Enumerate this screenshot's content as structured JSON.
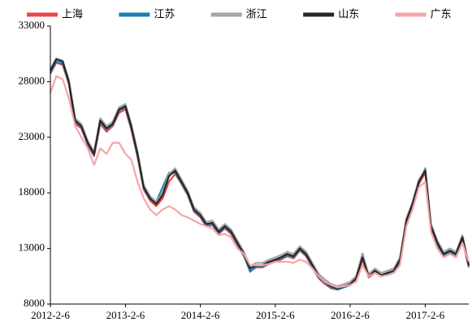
{
  "chart_data": {
    "type": "line",
    "x": [
      "2012-2-6",
      "2012-3-6",
      "2012-4-6",
      "2012-5-6",
      "2012-6-6",
      "2012-7-6",
      "2012-8-6",
      "2012-9-6",
      "2012-10-6",
      "2012-11-6",
      "2012-12-6",
      "2013-1-6",
      "2013-2-6",
      "2013-3-6",
      "2013-4-6",
      "2013-5-6",
      "2013-6-6",
      "2013-7-6",
      "2013-8-6",
      "2013-9-6",
      "2013-10-6",
      "2013-11-6",
      "2013-12-6",
      "2014-1-6",
      "2014-2-6",
      "2014-3-6",
      "2014-4-6",
      "2014-5-6",
      "2014-6-6",
      "2014-7-6",
      "2014-8-6",
      "2014-9-6",
      "2014-10-6",
      "2014-11-6",
      "2014-12-6",
      "2015-1-6",
      "2015-2-6",
      "2015-3-6",
      "2015-4-6",
      "2015-5-6",
      "2015-6-6",
      "2015-7-6",
      "2015-8-6",
      "2015-9-6",
      "2015-10-6",
      "2015-11-6",
      "2015-12-6",
      "2016-1-6",
      "2016-2-6",
      "2016-3-6",
      "2016-4-6",
      "2016-5-6",
      "2016-6-6",
      "2016-7-6",
      "2016-8-6",
      "2016-9-6",
      "2016-10-6",
      "2016-11-6",
      "2016-12-6",
      "2017-1-6",
      "2017-2-6",
      "2017-3-6",
      "2017-4-6",
      "2017-5-6",
      "2017-6-6",
      "2017-7-6",
      "2017-8-6",
      "2017-9-6"
    ],
    "series": [
      {
        "name": "上海",
        "color": "#e8474a",
        "values": [
          28700,
          29700,
          29500,
          27800,
          24200,
          23800,
          22300,
          21300,
          24200,
          23500,
          24000,
          25200,
          25500,
          23700,
          21200,
          18300,
          17300,
          16800,
          17500,
          19000,
          19700,
          18800,
          17800,
          16300,
          15800,
          15000,
          15100,
          14300,
          14800,
          14300,
          13300,
          12300,
          11000,
          11300,
          11300,
          11600,
          11800,
          12000,
          12300,
          12100,
          12800,
          12300,
          11300,
          10300,
          9800,
          9400,
          9300,
          9500,
          9700,
          10200,
          12000,
          10400,
          10800,
          10500,
          10700,
          10900,
          11800,
          15300,
          16800,
          18800,
          19800,
          14800,
          13300,
          12300,
          12600,
          12300,
          13800,
          11300
        ]
      },
      {
        "name": "江苏",
        "color": "#1a7fb5",
        "values": [
          28800,
          29800,
          29600,
          27900,
          24400,
          23900,
          22400,
          21400,
          24400,
          23700,
          24100,
          25400,
          25700,
          23900,
          21400,
          18400,
          17400,
          17200,
          18500,
          19800,
          19800,
          18900,
          17900,
          16400,
          15900,
          15100,
          15200,
          14400,
          14900,
          14400,
          13400,
          12400,
          10900,
          11400,
          11400,
          11700,
          11900,
          12100,
          12400,
          12200,
          12900,
          12400,
          11400,
          10400,
          9900,
          9500,
          9300,
          9500,
          9700,
          10400,
          12500,
          10600,
          10900,
          10500,
          10700,
          10900,
          11900,
          15400,
          16900,
          18900,
          20200,
          14900,
          13400,
          12400,
          12700,
          12400,
          13900,
          11400
        ]
      },
      {
        "name": "浙江",
        "color": "#a6a6a6",
        "values": [
          29100,
          30100,
          29900,
          28200,
          24700,
          24200,
          22700,
          21700,
          24700,
          24000,
          24400,
          25700,
          26000,
          24200,
          21700,
          18700,
          17700,
          17200,
          18000,
          19700,
          20200,
          19200,
          18200,
          16700,
          16200,
          15400,
          15500,
          14700,
          15200,
          14700,
          13700,
          12700,
          11400,
          11700,
          11700,
          12000,
          12200,
          12400,
          12700,
          12500,
          13200,
          12700,
          11700,
          10700,
          10200,
          9800,
          9600,
          9800,
          10000,
          10500,
          12400,
          10700,
          11200,
          10800,
          11000,
          11200,
          12200,
          15700,
          17200,
          19200,
          20100,
          15200,
          13700,
          12700,
          13000,
          12700,
          14200,
          11700
        ]
      },
      {
        "name": "山东",
        "color": "#262626",
        "values": [
          29000,
          30000,
          29800,
          28000,
          24500,
          24000,
          22500,
          21500,
          24500,
          23800,
          24200,
          25500,
          25800,
          24000,
          21500,
          18500,
          17500,
          17000,
          17800,
          19500,
          20000,
          19000,
          18000,
          16500,
          16000,
          15200,
          15300,
          14500,
          15000,
          14500,
          13500,
          12500,
          11200,
          11500,
          11500,
          11800,
          12000,
          12200,
          12500,
          12300,
          13000,
          12500,
          11500,
          10500,
          10000,
          9600,
          9400,
          9600,
          9800,
          10300,
          12200,
          10500,
          11000,
          10600,
          10800,
          11000,
          12000,
          15500,
          17000,
          19000,
          20000,
          15000,
          13500,
          12500,
          12800,
          12500,
          14000,
          11500
        ]
      },
      {
        "name": "广东",
        "color": "#f4a6a6",
        "values": [
          27000,
          28500,
          28200,
          26500,
          24000,
          23000,
          22000,
          20500,
          22000,
          21500,
          22500,
          22500,
          21500,
          21000,
          19000,
          17500,
          16500,
          16000,
          16500,
          16800,
          16500,
          16000,
          15800,
          15500,
          15200,
          15000,
          14800,
          14200,
          14300,
          14000,
          13000,
          12500,
          11500,
          11500,
          11500,
          11600,
          11800,
          11800,
          11800,
          11700,
          12000,
          11800,
          11200,
          10500,
          10000,
          9700,
          9500,
          9600,
          9700,
          10000,
          11500,
          10500,
          10800,
          10500,
          10600,
          10800,
          11500,
          15000,
          16500,
          18500,
          19000,
          14500,
          13000,
          12200,
          12500,
          12200,
          13500,
          11800
        ]
      }
    ],
    "xlim": [
      "2012-2-6",
      "2017-9-6"
    ],
    "xticks": [
      "2012-2-6",
      "2013-2-6",
      "2014-2-6",
      "2015-2-6",
      "2016-2-6",
      "2017-2-6"
    ],
    "ylim": [
      8000,
      33000
    ],
    "yticks": [
      8000,
      13000,
      18000,
      23000,
      28000,
      33000
    ],
    "legend": "top"
  }
}
